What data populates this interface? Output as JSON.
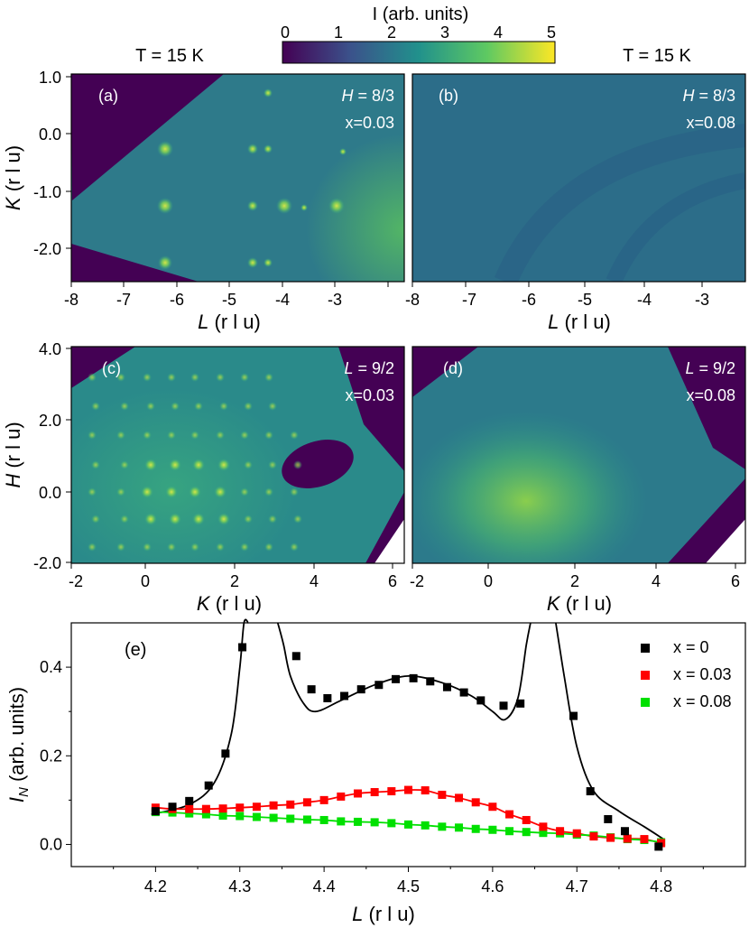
{
  "colorbar": {
    "title": "I (arb. units)",
    "ticks": [
      "0",
      "1",
      "2",
      "3",
      "4",
      "5"
    ],
    "range": [
      0,
      5
    ],
    "colormap": "viridis",
    "colors": [
      "#440154",
      "#3b528b",
      "#21918c",
      "#5ec962",
      "#fde725"
    ]
  },
  "headers": {
    "left": "T = 15 K",
    "right": "T = 15 K"
  },
  "panels": [
    {
      "id": "a",
      "label": "(a)",
      "param_var": "H",
      "param_eq": " = 8/3",
      "x_label": "x=0.03",
      "xaxis": {
        "var": "L",
        "unit": " (r l u)",
        "ticks": [
          "-8",
          "-7",
          "-6",
          "-5",
          "-4",
          "-3"
        ]
      },
      "yaxis": {
        "var": "K",
        "unit": " (r l u)",
        "ticks": [
          "1.0",
          "0.0",
          "-1.0",
          "-2.0"
        ]
      }
    },
    {
      "id": "b",
      "label": "(b)",
      "param_var": "H",
      "param_eq": " = 8/3",
      "x_label": "x=0.08",
      "xaxis": {
        "var": "L",
        "unit": " (r l u)",
        "ticks": [
          "-8",
          "-7",
          "-6",
          "-5",
          "-4",
          "-3"
        ]
      }
    },
    {
      "id": "c",
      "label": "(c)",
      "param_var": "L",
      "param_eq": " = 9/2",
      "x_label": "x=0.03",
      "xaxis": {
        "var": "K",
        "unit": " (r l u)",
        "ticks": [
          "-2",
          "0",
          "2",
          "4",
          "6"
        ]
      },
      "yaxis": {
        "var": "H",
        "unit": " (r l u)",
        "ticks": [
          "4.0",
          "2.0",
          "0.0",
          "-2.0"
        ]
      }
    },
    {
      "id": "d",
      "label": "(d)",
      "param_var": "L",
      "param_eq": " = 9/2",
      "x_label": "x=0.08",
      "xaxis": {
        "var": "K",
        "unit": " (r l u)",
        "ticks": [
          "-2",
          "0",
          "2",
          "4",
          "6"
        ]
      }
    }
  ],
  "chart_data": {
    "type": "scatter",
    "panel_label": "(e)",
    "xlabel_var": "L",
    "xlabel_unit": " (r l u)",
    "ylabel_base": "I",
    "ylabel_sub": "N",
    "ylabel_unit": " (arb. units)",
    "xlim": [
      4.1,
      4.9
    ],
    "ylim": [
      -0.05,
      0.5
    ],
    "xticks": [
      4.2,
      4.3,
      4.4,
      4.5,
      4.6,
      4.7,
      4.8
    ],
    "xtick_labels": [
      "4.2",
      "4.3",
      "4.4",
      "4.5",
      "4.6",
      "4.7",
      "4.8"
    ],
    "yticks": [
      0.0,
      0.2,
      0.4
    ],
    "ytick_labels": [
      "0.0",
      "0.2",
      "0.4"
    ],
    "legend_position": "top-right",
    "series": [
      {
        "name": "x = 0",
        "color": "#000000",
        "x": [
          4.2,
          4.22,
          4.24,
          4.263,
          4.283,
          4.303,
          4.367,
          4.385,
          4.404,
          4.424,
          4.444,
          4.465,
          4.485,
          4.506,
          4.526,
          4.546,
          4.566,
          4.586,
          4.613,
          4.633,
          4.696,
          4.716,
          4.737,
          4.757,
          4.797
        ],
        "y": [
          0.075,
          0.085,
          0.098,
          0.133,
          0.205,
          0.445,
          0.425,
          0.35,
          0.33,
          0.335,
          0.35,
          0.36,
          0.373,
          0.375,
          0.368,
          0.355,
          0.343,
          0.325,
          0.313,
          0.318,
          0.29,
          0.12,
          0.057,
          0.03,
          -0.005
        ]
      },
      {
        "name": "x = 0.03",
        "color": "#ff0000",
        "x": [
          4.2,
          4.22,
          4.24,
          4.26,
          4.28,
          4.3,
          4.32,
          4.34,
          4.36,
          4.38,
          4.4,
          4.42,
          4.44,
          4.46,
          4.48,
          4.5,
          4.52,
          4.54,
          4.56,
          4.58,
          4.6,
          4.62,
          4.64,
          4.66,
          4.68,
          4.7,
          4.72,
          4.74,
          4.76,
          4.78,
          4.8
        ],
        "y": [
          0.083,
          0.08,
          0.08,
          0.08,
          0.081,
          0.083,
          0.085,
          0.088,
          0.09,
          0.095,
          0.1,
          0.108,
          0.115,
          0.118,
          0.12,
          0.123,
          0.122,
          0.112,
          0.105,
          0.095,
          0.085,
          0.068,
          0.055,
          0.04,
          0.03,
          0.025,
          0.018,
          0.015,
          0.013,
          0.012,
          0.003
        ]
      },
      {
        "name": "x = 0.08",
        "color": "#00e000",
        "x": [
          4.2,
          4.22,
          4.24,
          4.26,
          4.28,
          4.3,
          4.32,
          4.34,
          4.36,
          4.38,
          4.4,
          4.42,
          4.44,
          4.46,
          4.48,
          4.5,
          4.52,
          4.54,
          4.56,
          4.58,
          4.6,
          4.62,
          4.64,
          4.66,
          4.68,
          4.7,
          4.72,
          4.74,
          4.76,
          4.78,
          4.8
        ],
        "y": [
          0.073,
          0.072,
          0.07,
          0.068,
          0.065,
          0.064,
          0.062,
          0.06,
          0.058,
          0.056,
          0.055,
          0.052,
          0.051,
          0.05,
          0.048,
          0.045,
          0.043,
          0.04,
          0.038,
          0.035,
          0.033,
          0.03,
          0.028,
          0.026,
          0.025,
          0.022,
          0.02,
          0.016,
          0.012,
          0.01,
          0.005
        ]
      }
    ]
  }
}
